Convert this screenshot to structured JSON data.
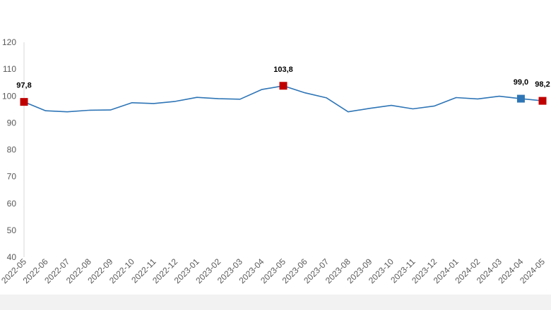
{
  "chart_data": {
    "type": "line",
    "title": "",
    "xlabel": "",
    "ylabel": "",
    "ylim": [
      40,
      120
    ],
    "yticks": [
      "40",
      "50",
      "60",
      "70",
      "80",
      "90",
      "100",
      "110",
      "120"
    ],
    "grid": false,
    "legend": "none",
    "categories": [
      "2022-05",
      "2022-06",
      "2022-07",
      "2022-08",
      "2022-09",
      "2022-10",
      "2022-11",
      "2022-12",
      "2023-01",
      "2023-02",
      "2023-03",
      "2023-04",
      "2023-05",
      "2023-06",
      "2023-07",
      "2023-08",
      "2023-09",
      "2023-10",
      "2023-11",
      "2023-12",
      "2024-01",
      "2024-02",
      "2024-03",
      "2024-04",
      "2024-05"
    ],
    "series": [
      {
        "values": [
          97.8,
          94.5,
          94.1,
          94.7,
          94.8,
          97.5,
          97.2,
          98.0,
          99.5,
          99.0,
          98.8,
          102.4,
          103.8,
          101.2,
          99.3,
          94.1,
          95.4,
          96.5,
          95.2,
          96.3,
          99.4,
          98.9,
          99.9,
          99.0,
          98.2
        ],
        "color": "#2e75b6"
      }
    ],
    "annotations": [
      {
        "index": 0,
        "label": "97,8",
        "color": "#c00000"
      },
      {
        "index": 12,
        "label": "103,8",
        "color": "#c00000"
      },
      {
        "index": 23,
        "label": "99,0",
        "color": "#2e75b6"
      },
      {
        "index": 24,
        "label": "98,2",
        "color": "#c00000"
      }
    ]
  }
}
